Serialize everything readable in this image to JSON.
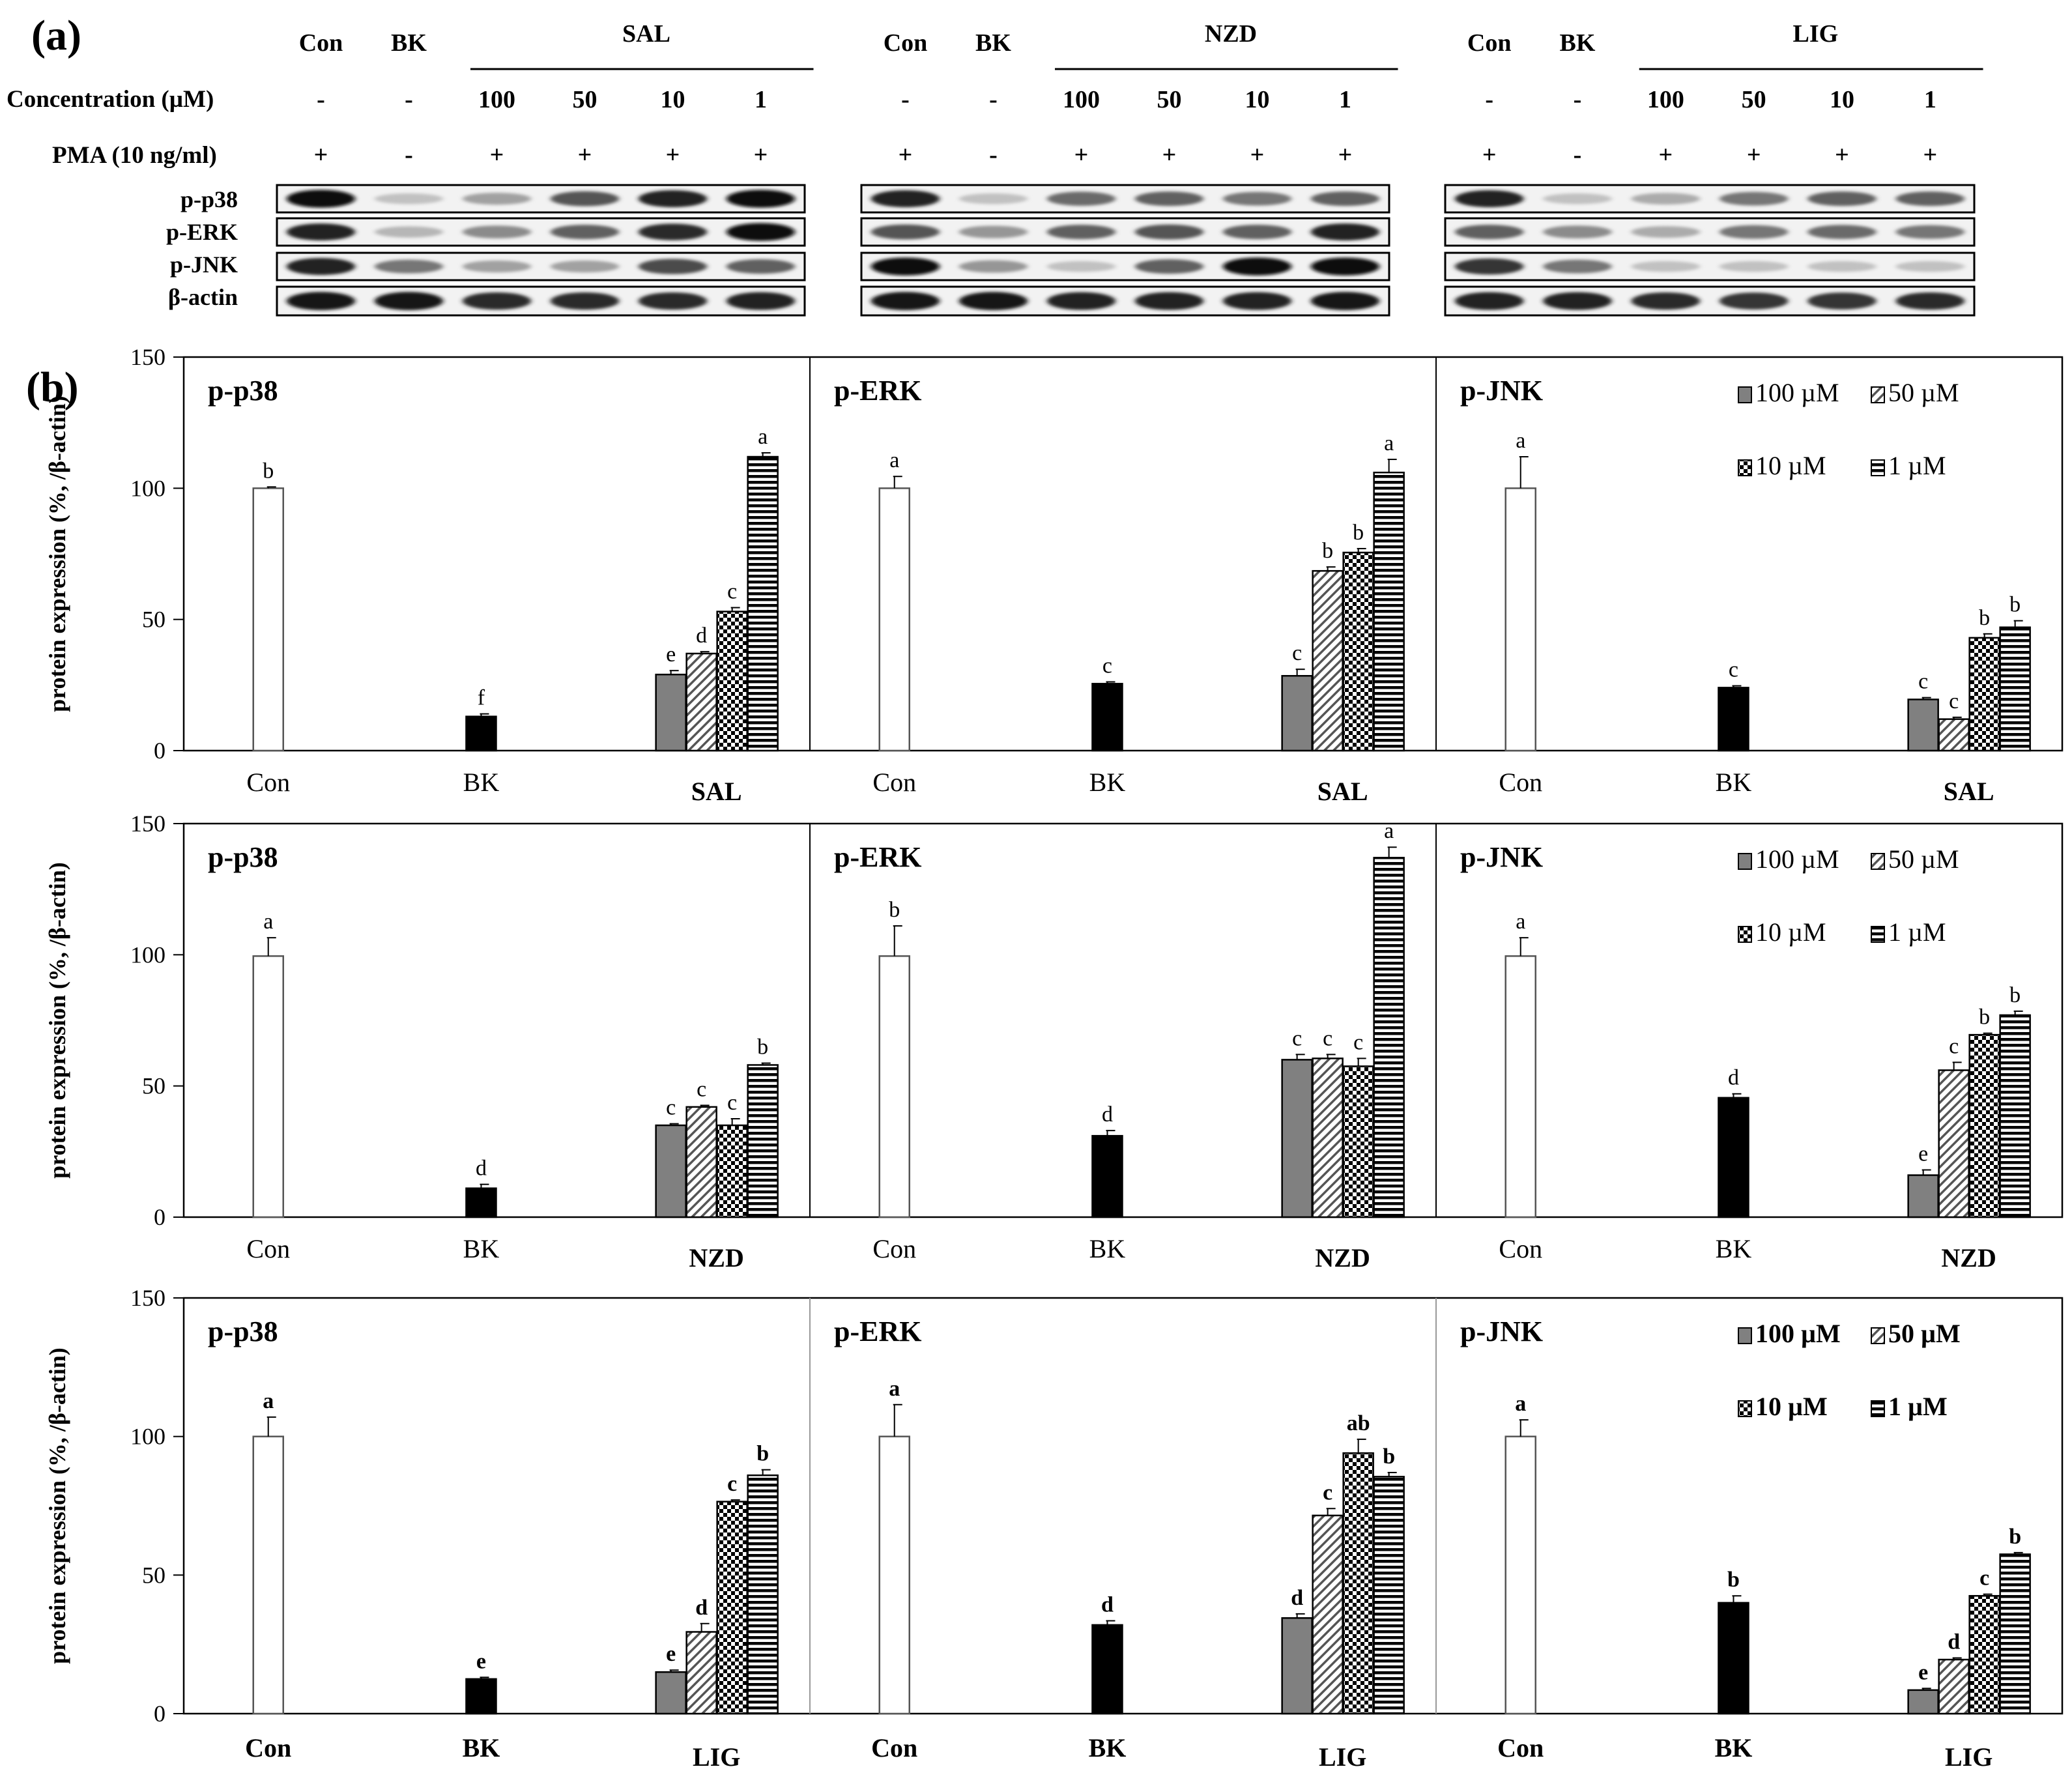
{
  "panel_a": {
    "label": "(a)",
    "row_labels": {
      "concentration": "Concentration (µM)",
      "pma": "PMA (10 ng/ml)"
    },
    "groups": [
      {
        "name": "SAL",
        "lanes": [
          {
            "header": "Con",
            "conc": "-",
            "pma": "+"
          },
          {
            "header": "BK",
            "conc": "-",
            "pma": "-"
          },
          {
            "header": "",
            "conc": "100",
            "pma": "+"
          },
          {
            "header": "",
            "conc": "50",
            "pma": "+"
          },
          {
            "header": "",
            "conc": "10",
            "pma": "+"
          },
          {
            "header": "",
            "conc": "1",
            "pma": "+"
          }
        ]
      },
      {
        "name": "NZD",
        "lanes": [
          {
            "header": "Con",
            "conc": "-",
            "pma": "+"
          },
          {
            "header": "BK",
            "conc": "-",
            "pma": "-"
          },
          {
            "header": "",
            "conc": "100",
            "pma": "+"
          },
          {
            "header": "",
            "conc": "50",
            "pma": "+"
          },
          {
            "header": "",
            "conc": "10",
            "pma": "+"
          },
          {
            "header": "",
            "conc": "1",
            "pma": "+"
          }
        ]
      },
      {
        "name": "LIG",
        "lanes": [
          {
            "header": "Con",
            "conc": "-",
            "pma": "+"
          },
          {
            "header": "BK",
            "conc": "-",
            "pma": "-"
          },
          {
            "header": "",
            "conc": "100",
            "pma": "+"
          },
          {
            "header": "",
            "conc": "50",
            "pma": "+"
          },
          {
            "header": "",
            "conc": "10",
            "pma": "+"
          },
          {
            "header": "",
            "conc": "1",
            "pma": "+"
          }
        ]
      }
    ],
    "blot_rows": [
      "p-p38",
      "p-ERK",
      "p-JNK",
      "β-actin"
    ],
    "band_intensity": [
      [
        [
          1.0,
          0.15,
          0.3,
          0.65,
          0.9,
          1.0
        ],
        [
          0.9,
          0.2,
          0.4,
          0.6,
          0.85,
          1.0
        ],
        [
          0.9,
          0.5,
          0.3,
          0.3,
          0.7,
          0.6
        ],
        [
          0.95,
          0.95,
          0.85,
          0.85,
          0.85,
          0.9
        ]
      ],
      [
        [
          0.9,
          0.15,
          0.55,
          0.6,
          0.5,
          0.6
        ],
        [
          0.65,
          0.35,
          0.6,
          0.65,
          0.6,
          0.9
        ],
        [
          1.0,
          0.35,
          0.15,
          0.6,
          1.0,
          1.0
        ],
        [
          0.95,
          0.95,
          0.9,
          0.9,
          0.9,
          0.95
        ]
      ],
      [
        [
          0.9,
          0.15,
          0.25,
          0.5,
          0.6,
          0.6
        ],
        [
          0.6,
          0.4,
          0.25,
          0.5,
          0.55,
          0.5
        ],
        [
          0.8,
          0.5,
          0.15,
          0.15,
          0.15,
          0.15
        ],
        [
          0.9,
          0.9,
          0.85,
          0.8,
          0.8,
          0.85
        ]
      ]
    ]
  },
  "panel_b_label": "(b)",
  "chart_data": {
    "type": "bar",
    "ylabel": "protein expression (%, /β-actin)",
    "ylim": [
      0,
      150
    ],
    "yticks": [
      0,
      50,
      100,
      150
    ],
    "legend": {
      "position": "top-right of p-JNK panels",
      "entries": [
        {
          "label": "100 µM",
          "pattern": "gray"
        },
        {
          "label": "50 µM",
          "pattern": "diagonal"
        },
        {
          "label": "10 µM",
          "pattern": "checker"
        },
        {
          "label": "1 µM",
          "pattern": "horizontal"
        }
      ]
    },
    "rows": [
      {
        "compound": "SAL",
        "panels": [
          {
            "title": "p-p38",
            "con": {
              "value": 100,
              "err": 0.5,
              "letter": "b"
            },
            "bk": {
              "value": 13,
              "err": 1,
              "letter": "f"
            },
            "treatment": [
              {
                "value": 29,
                "err": 1.5,
                "letter": "e"
              },
              {
                "value": 37,
                "err": 0.7,
                "letter": "d"
              },
              {
                "value": 53,
                "err": 1.5,
                "letter": "c"
              },
              {
                "value": 112,
                "err": 1.5,
                "letter": "a"
              }
            ]
          },
          {
            "title": "p-ERK",
            "con": {
              "value": 100,
              "err": 4.5,
              "letter": "a"
            },
            "bk": {
              "value": 25.5,
              "err": 0.7,
              "letter": "c"
            },
            "treatment": [
              {
                "value": 28.5,
                "err": 2.5,
                "letter": "c"
              },
              {
                "value": 68.5,
                "err": 1.5,
                "letter": "b"
              },
              {
                "value": 75.5,
                "err": 1.5,
                "letter": "b"
              },
              {
                "value": 106,
                "err": 5,
                "letter": "a"
              }
            ]
          },
          {
            "title": "p-JNK",
            "con": {
              "value": 100,
              "err": 12,
              "letter": "a"
            },
            "bk": {
              "value": 24,
              "err": 0.7,
              "letter": "c"
            },
            "treatment": [
              {
                "value": 19.5,
                "err": 0.7,
                "letter": "c"
              },
              {
                "value": 12,
                "err": 0.7,
                "letter": "c"
              },
              {
                "value": 43,
                "err": 1.5,
                "letter": "b"
              },
              {
                "value": 47,
                "err": 2.5,
                "letter": "b"
              }
            ]
          }
        ]
      },
      {
        "compound": "NZD",
        "panels": [
          {
            "title": "p-p38",
            "con": {
              "value": 99.5,
              "err": 7,
              "letter": "a"
            },
            "bk": {
              "value": 11,
              "err": 1.5,
              "letter": "d"
            },
            "treatment": [
              {
                "value": 35,
                "err": 0.6,
                "letter": "c"
              },
              {
                "value": 42,
                "err": 0.6,
                "letter": "c"
              },
              {
                "value": 35,
                "err": 2.5,
                "letter": "c"
              },
              {
                "value": 58,
                "err": 0.7,
                "letter": "b"
              }
            ]
          },
          {
            "title": "p-ERK",
            "con": {
              "value": 99.5,
              "err": 11.5,
              "letter": "b"
            },
            "bk": {
              "value": 31,
              "err": 2,
              "letter": "d"
            },
            "treatment": [
              {
                "value": 60,
                "err": 2,
                "letter": "c"
              },
              {
                "value": 60.5,
                "err": 1.5,
                "letter": "c"
              },
              {
                "value": 57.5,
                "err": 3,
                "letter": "c"
              },
              {
                "value": 137,
                "err": 4,
                "letter": "a"
              }
            ]
          },
          {
            "title": "p-JNK",
            "con": {
              "value": 99.5,
              "err": 7,
              "letter": "a"
            },
            "bk": {
              "value": 45.5,
              "err": 1.5,
              "letter": "d"
            },
            "treatment": [
              {
                "value": 16,
                "err": 2,
                "letter": "e"
              },
              {
                "value": 56,
                "err": 3,
                "letter": "c"
              },
              {
                "value": 69.5,
                "err": 0.6,
                "letter": "b"
              },
              {
                "value": 77,
                "err": 1.5,
                "letter": "b"
              }
            ]
          }
        ]
      },
      {
        "compound": "LIG",
        "panels": [
          {
            "title": "p-p38",
            "con": {
              "value": 100,
              "err": 7,
              "letter": "a"
            },
            "bk": {
              "value": 12.5,
              "err": 0.6,
              "letter": "e"
            },
            "treatment": [
              {
                "value": 15,
                "err": 0.7,
                "letter": "e"
              },
              {
                "value": 29.5,
                "err": 3,
                "letter": "d"
              },
              {
                "value": 76.5,
                "err": 0.6,
                "letter": "c"
              },
              {
                "value": 86,
                "err": 2,
                "letter": "b"
              }
            ]
          },
          {
            "title": "p-ERK",
            "con": {
              "value": 100,
              "err": 11.5,
              "letter": "a"
            },
            "bk": {
              "value": 32,
              "err": 1.5,
              "letter": "d"
            },
            "treatment": [
              {
                "value": 34.5,
                "err": 1.5,
                "letter": "d"
              },
              {
                "value": 71.5,
                "err": 2.5,
                "letter": "c"
              },
              {
                "value": 94,
                "err": 5,
                "letter": "ab"
              },
              {
                "value": 85.5,
                "err": 1.5,
                "letter": "b"
              }
            ]
          },
          {
            "title": "p-JNK",
            "con": {
              "value": 100,
              "err": 6,
              "letter": "a"
            },
            "bk": {
              "value": 40,
              "err": 2.5,
              "letter": "b"
            },
            "treatment": [
              {
                "value": 8.5,
                "err": 0.6,
                "letter": "e"
              },
              {
                "value": 19.5,
                "err": 0.6,
                "letter": "d"
              },
              {
                "value": 42.5,
                "err": 0.6,
                "letter": "c"
              },
              {
                "value": 57.5,
                "err": 0.6,
                "letter": "b"
              }
            ]
          }
        ]
      }
    ],
    "xlabels": [
      "Con",
      "BK"
    ]
  }
}
